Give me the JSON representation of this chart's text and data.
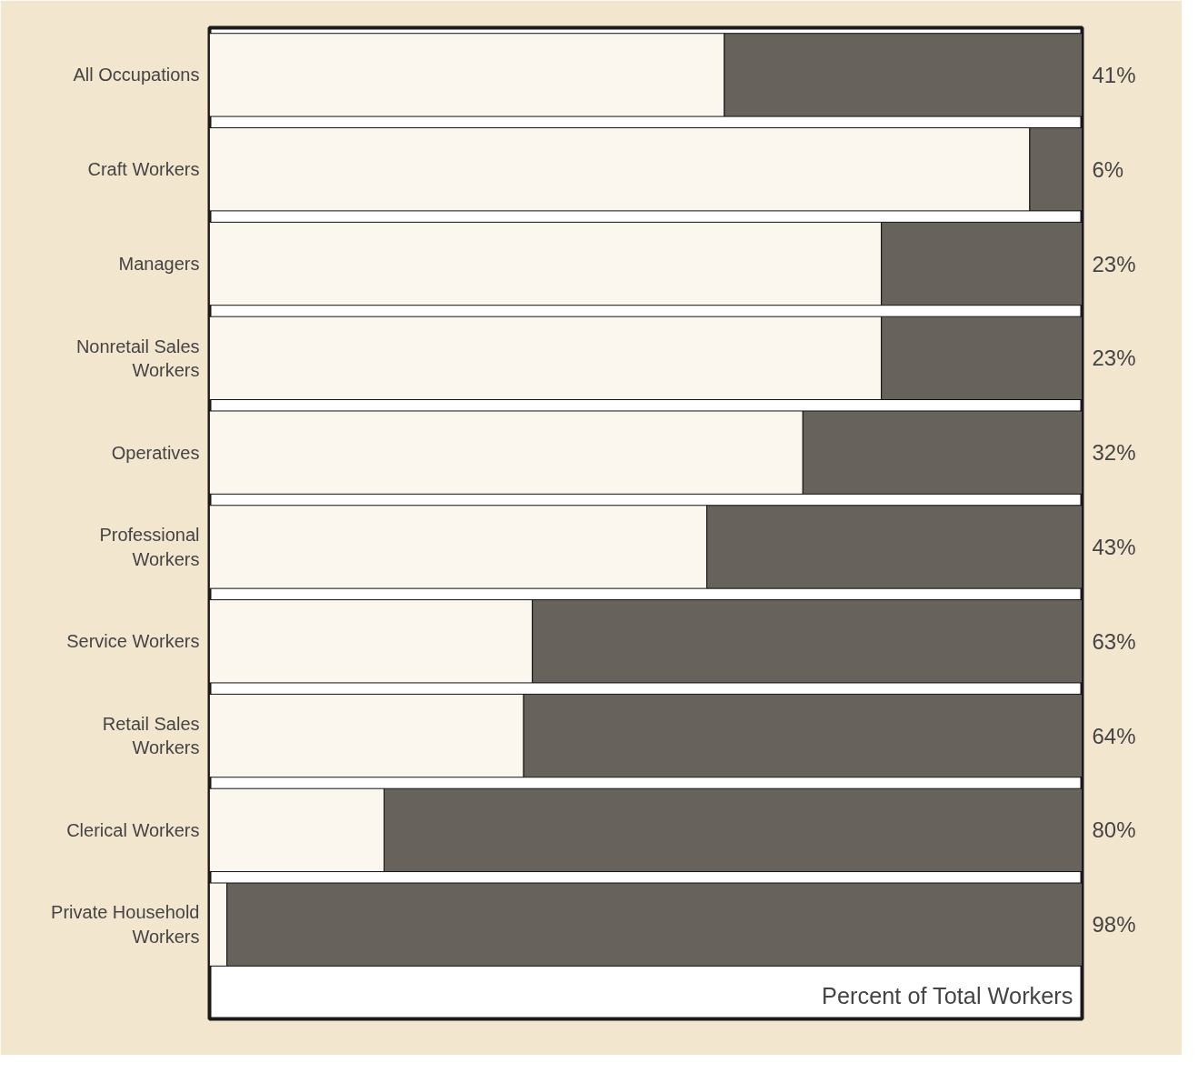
{
  "chart_data": {
    "type": "bar",
    "orientation": "horizontal",
    "stacked": true,
    "categories": [
      "All Occupations",
      "Craft Workers",
      "Managers",
      "Nonretail Sales Workers",
      "Operatives",
      "Professional Workers",
      "Service Workers",
      "Retail Sales Workers",
      "Clerical Workers",
      "Private Household Workers"
    ],
    "xlabel": "Percent of Total Workers",
    "xlim": [
      0,
      100
    ],
    "series": [
      {
        "color": "#fbf7ef",
        "values": [
          59,
          94,
          77,
          77,
          68,
          57,
          37,
          36,
          20,
          2
        ]
      },
      {
        "color": "#67625b",
        "values": [
          41,
          6,
          23,
          23,
          32,
          43,
          63,
          64,
          80,
          98
        ],
        "value_labels": [
          "41%",
          "6%",
          "23%",
          "23%",
          "32%",
          "43%",
          "63%",
          "64%",
          "80%",
          "98%"
        ]
      }
    ]
  }
}
